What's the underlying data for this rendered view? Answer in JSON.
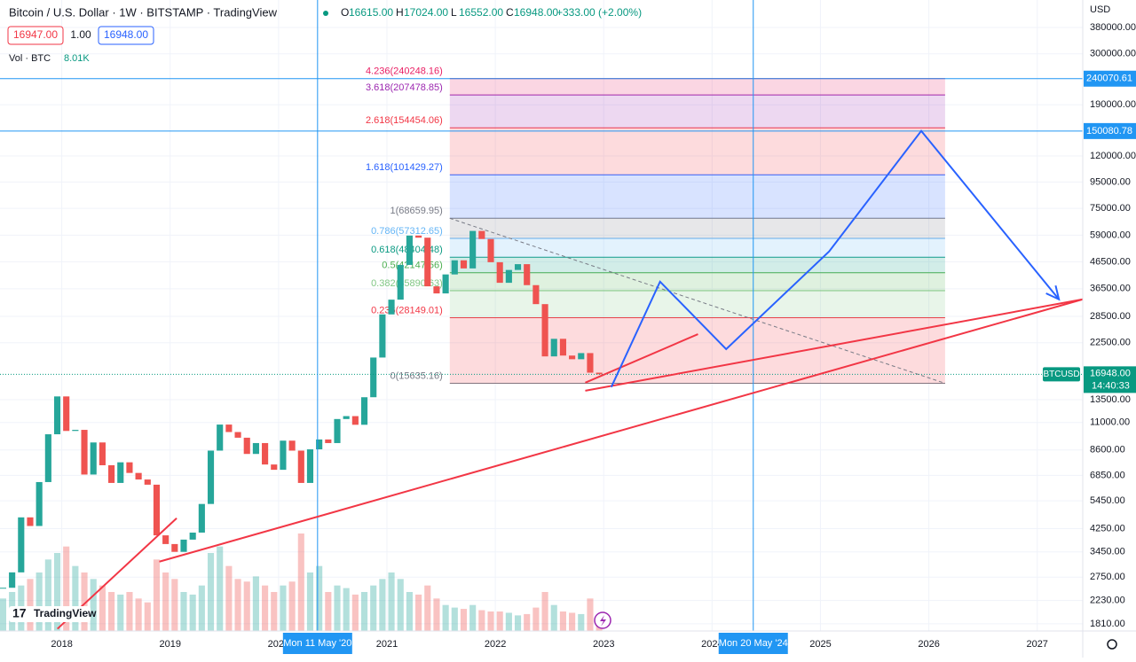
{
  "header": {
    "title": "Bitcoin / U.S. Dollar · 1W · BITSTAMP · TradingView",
    "ohlc": [
      {
        "key": "O",
        "value": "16615.00"
      },
      {
        "key": "H",
        "value": "17024.00"
      },
      {
        "key": "L",
        "value": "16552.00"
      },
      {
        "key": "C",
        "value": "16948.00"
      }
    ],
    "change": "+333.00 (+2.00%)",
    "bid": "16947.00",
    "spread": "1.00",
    "ask": "16948.00",
    "volume_label": "Vol · BTC",
    "volume_value": "8.01K",
    "logo": "TradingView"
  },
  "chart_data": {
    "type": "candlestick",
    "log_scale": true,
    "grid": true,
    "axis_unit": "USD",
    "up_color": "#26a69a",
    "down_color": "#ef5350",
    "x": [
      "2017-06",
      "2017-07",
      "2017-08",
      "2017-09",
      "2017-10",
      "2017-11",
      "2017-12",
      "2018-01",
      "2018-02",
      "2018-03",
      "2018-04",
      "2018-05",
      "2018-06",
      "2018-07",
      "2018-08",
      "2018-09",
      "2018-10",
      "2018-11",
      "2018-12",
      "2019-01",
      "2019-02",
      "2019-03",
      "2019-04",
      "2019-05",
      "2019-06",
      "2019-07",
      "2019-08",
      "2019-09",
      "2019-10",
      "2019-11",
      "2019-12",
      "2020-01",
      "2020-02",
      "2020-03",
      "2020-04",
      "2020-05",
      "2020-06",
      "2020-07",
      "2020-08",
      "2020-09",
      "2020-10",
      "2020-11",
      "2020-12",
      "2021-01",
      "2021-02",
      "2021-03",
      "2021-04",
      "2021-05",
      "2021-06",
      "2021-07",
      "2021-08",
      "2021-09",
      "2021-10",
      "2021-11",
      "2021-12",
      "2022-01",
      "2022-02",
      "2022-03",
      "2022-04",
      "2022-05",
      "2022-06",
      "2022-07",
      "2022-08",
      "2022-09",
      "2022-10",
      "2022-11",
      "2022-12"
    ],
    "values": [
      2500,
      2870,
      4700,
      4350,
      6450,
      9900,
      13900,
      10200,
      10300,
      6900,
      9200,
      7500,
      6400,
      7700,
      7000,
      6600,
      6300,
      4000,
      3700,
      3450,
      3850,
      4100,
      5300,
      8550,
      10800,
      10100,
      9600,
      8300,
      9150,
      7550,
      7200,
      9350,
      8550,
      6400,
      8650,
      9450,
      9150,
      11350,
      11650,
      10780,
      13800,
      19700,
      29000,
      33100,
      45200,
      58800,
      57700,
      37300,
      35000,
      41500,
      47100,
      43800,
      61300,
      57000,
      46300,
      38500,
      43200,
      45500,
      37700,
      31800,
      19900,
      23300,
      20050,
      19400,
      20500,
      17200,
      16948
    ],
    "volume": [
      25,
      30,
      35,
      40,
      45,
      55,
      60,
      65,
      50,
      45,
      40,
      35,
      30,
      28,
      30,
      25,
      22,
      55,
      45,
      40,
      30,
      28,
      35,
      60,
      65,
      50,
      40,
      38,
      42,
      35,
      30,
      35,
      38,
      75,
      45,
      50,
      30,
      35,
      33,
      28,
      30,
      35,
      40,
      45,
      40,
      30,
      28,
      35,
      25,
      20,
      18,
      17,
      20,
      16,
      15,
      15,
      14,
      12,
      13,
      18,
      30,
      20,
      15,
      14,
      13,
      25,
      10
    ],
    "xlim": [
      2017.43,
      2027.42
    ],
    "xticks": [
      2018,
      2019,
      2020,
      2021,
      2022,
      2023,
      2024,
      2025,
      2026,
      2027
    ],
    "ylim": [
      1697,
      486000
    ],
    "yticks": [
      {
        "value": 380000,
        "label": "380000.00"
      },
      {
        "value": 300000,
        "label": "300000.00"
      },
      {
        "value": 190000,
        "label": "190000.00"
      },
      {
        "value": 120000,
        "label": "120000.00"
      },
      {
        "value": 95000,
        "label": "95000.00"
      },
      {
        "value": 75000,
        "label": "75000.00"
      },
      {
        "value": 59000,
        "label": "59000.00"
      },
      {
        "value": 46500,
        "label": "46500.00"
      },
      {
        "value": 36500,
        "label": "36500.00"
      },
      {
        "value": 28500,
        "label": "28500.00"
      },
      {
        "value": 22500,
        "label": "22500.00"
      },
      {
        "value": 13500,
        "label": "13500.00"
      },
      {
        "value": 11000,
        "label": "11000.00"
      },
      {
        "value": 8600,
        "label": "8600.00"
      },
      {
        "value": 6850,
        "label": "6850.00"
      },
      {
        "value": 5450,
        "label": "5450.00"
      },
      {
        "value": 4250,
        "label": "4250.00"
      },
      {
        "value": 3450,
        "label": "3450.00"
      },
      {
        "value": 2750,
        "label": "2750.00"
      },
      {
        "value": 2230,
        "label": "2230.00"
      },
      {
        "value": 1810,
        "label": "1810.00"
      }
    ],
    "hlines": [
      {
        "value": 240070.61,
        "label": "240070.61",
        "color": "#2196f3"
      },
      {
        "value": 150080.78,
        "label": "150080.78",
        "color": "#2196f3"
      }
    ],
    "vlines": [
      {
        "value": 2020.36,
        "label": "Mon 11 May '20",
        "color": "#2196f3"
      },
      {
        "value": 2024.38,
        "label": "Mon 20 May '24",
        "color": "#2196f3"
      }
    ],
    "fib": {
      "start": 2021.58,
      "end": 2026.15,
      "levels": [
        {
          "value": 15635.16,
          "label": "0(15635.16)",
          "color": "#787b86"
        },
        {
          "value": 28149.01,
          "label": "0.236(28149.01)",
          "color": "#f23645"
        },
        {
          "value": 35890.63,
          "label": "0.382(35890.63)",
          "color": "#81c784"
        },
        {
          "value": 42147.56,
          "label": "0.5(42147.56)",
          "color": "#4caf50"
        },
        {
          "value": 48404.48,
          "label": "0.618(48404.48)",
          "color": "#089981"
        },
        {
          "value": 57312.65,
          "label": "0.786(57312.65)",
          "color": "#64b5f6"
        },
        {
          "value": 68659.95,
          "label": "1(68659.95)",
          "color": "#787b86"
        },
        {
          "value": 101429.27,
          "label": "1.618(101429.27)",
          "color": "#2962ff"
        },
        {
          "value": 154454.06,
          "label": "2.618(154454.06)",
          "color": "#f23645"
        },
        {
          "value": 207478.85,
          "label": "3.618(207478.85)",
          "color": "#9c27b0"
        },
        {
          "value": 240248.16,
          "label": "4.236(240248.16)",
          "color": "#e91e63"
        }
      ]
    },
    "trendlines": [
      {
        "color": "#f23645",
        "points": [
          [
            2017.96,
            1730
          ],
          [
            2019.06,
            4666
          ]
        ]
      },
      {
        "color": "#f23645",
        "points": [
          [
            2018.9,
            3160
          ],
          [
            2027.42,
            33200
          ]
        ]
      },
      {
        "color": "#f23645",
        "points": [
          [
            2022.83,
            15720
          ],
          [
            2023.87,
            24300
          ]
        ]
      },
      {
        "color": "#f23645",
        "points": [
          [
            2022.83,
            14630
          ],
          [
            2027.42,
            33200
          ]
        ]
      }
    ],
    "projection": {
      "color": "#2962ff",
      "points": [
        [
          2023.07,
          15110
        ],
        [
          2023.52,
          38900
        ],
        [
          2024.13,
          21240
        ],
        [
          2025.08,
          51000
        ],
        [
          2025.93,
          150300
        ],
        [
          2027.2,
          33200
        ]
      ]
    },
    "last_price": {
      "value": 16948,
      "label": "16948.00",
      "symbol": "BTCUSD",
      "countdown": "14:40:33",
      "color": "#089981"
    }
  }
}
